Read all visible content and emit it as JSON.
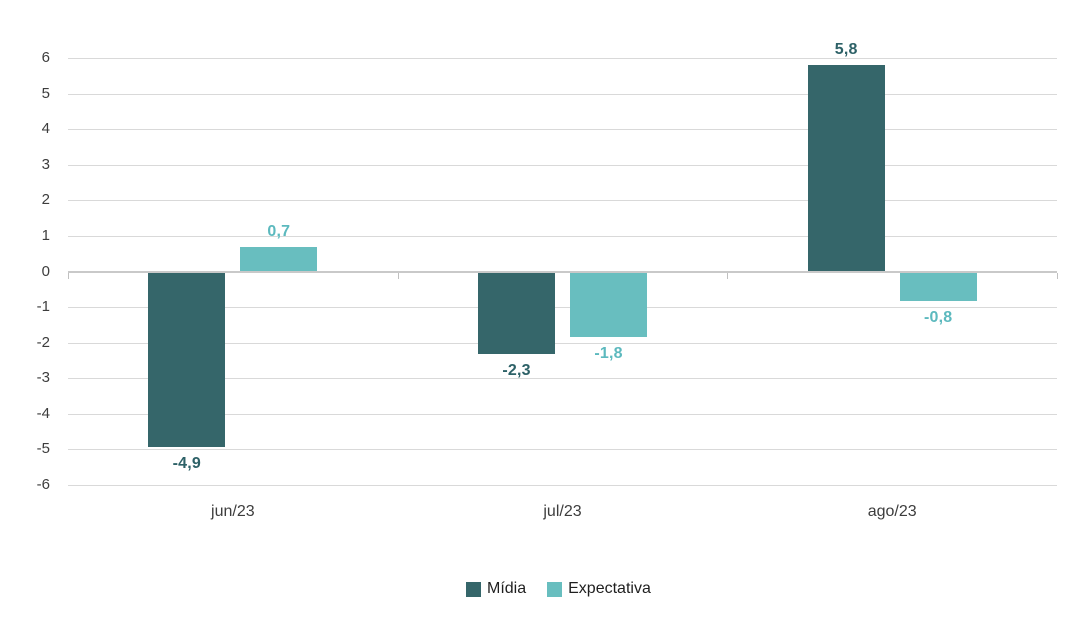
{
  "chart_data": {
    "type": "bar",
    "categories": [
      "jun/23",
      "jul/23",
      "ago/23"
    ],
    "series": [
      {
        "name": "Mídia",
        "color": "#35666A",
        "label_color": "#2D6167",
        "values": [
          -4.9,
          -2.3,
          5.8
        ],
        "labels": [
          "-4,9",
          "-2,3",
          "5,8"
        ]
      },
      {
        "name": "Expectativa",
        "color": "#68BEBF",
        "label_color": "#5CB9BE",
        "values": [
          0.7,
          -1.8,
          -0.8
        ],
        "labels": [
          "0,7",
          "-1,8",
          "-0,8"
        ]
      }
    ],
    "title": "",
    "xlabel": "",
    "ylabel": "",
    "y_axis": {
      "min": -6,
      "max": 6,
      "step": 1,
      "tick_labels": [
        "6",
        "5",
        "4",
        "3",
        "2",
        "1",
        "0",
        "-1",
        "-2",
        "-3",
        "-4",
        "-5",
        "-6"
      ]
    },
    "grid": true,
    "gridline_color": "#d9d9d9",
    "axis_line_color": "#c9c9c9",
    "background_color": "#ffffff",
    "legend_position": "bottom"
  },
  "legend": {
    "items": [
      {
        "label": "Mídia",
        "color": "#35666A"
      },
      {
        "label": "Expectativa",
        "color": "#68BEBF"
      }
    ]
  }
}
